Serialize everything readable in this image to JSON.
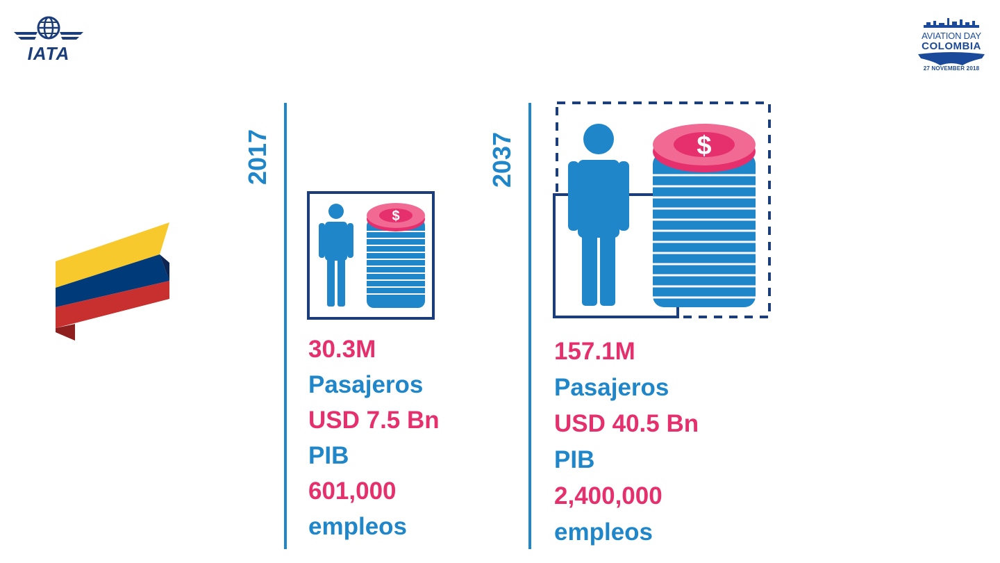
{
  "logos": {
    "iata": "IATA",
    "event_line1": "AVIATION DAY",
    "event_line2": "COLOMBIA",
    "event_date": "27 NOVEMBER 2018"
  },
  "years": [
    {
      "year": "2017",
      "passengers_value": "30.3M",
      "passengers_label": "Pasajeros",
      "gdp_value": "USD 7.5 Bn",
      "gdp_label": "PIB",
      "jobs_value": "601,000",
      "jobs_label": "empleos"
    },
    {
      "year": "2037",
      "passengers_value": "157.1M",
      "passengers_label": "Pasajeros",
      "gdp_value": "USD 40.5 Bn",
      "gdp_label": "PIB",
      "jobs_value": "2,400,000",
      "jobs_label": "empleos"
    }
  ],
  "colors": {
    "blue": "#1e86c9",
    "pink": "#e5306d",
    "navy": "#1b3d7a",
    "flag_yellow": "#f7c92c",
    "flag_blue": "#003a78",
    "flag_red": "#c8302f"
  },
  "icons": [
    "person-icon",
    "coin-stack-icon",
    "dollar-icon",
    "globe-icon",
    "colombia-flag-icon"
  ]
}
